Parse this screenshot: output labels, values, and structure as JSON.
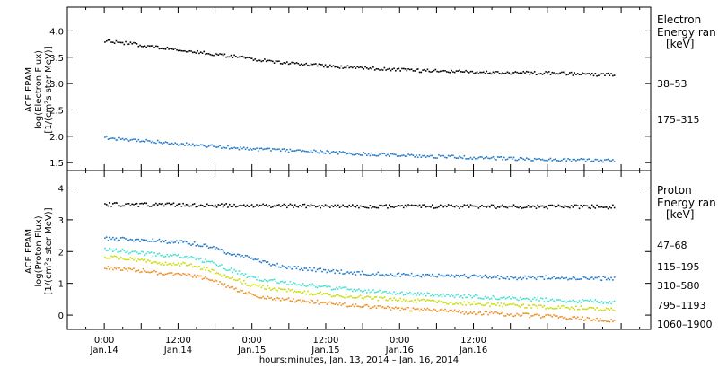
{
  "chart_data": [
    {
      "type": "scatter",
      "panel": "electron",
      "ylabel_lines": [
        "ACE EPAM",
        "log(Electron Flux)",
        "[1/(cm²s ster MeV)]"
      ],
      "ylim": [
        1.35,
        4.45
      ],
      "yticks": [
        1.5,
        2.0,
        2.5,
        3.0,
        3.5,
        4.0
      ],
      "ytick_labels": [
        "1.5",
        "2.0",
        "2.5",
        "3.0",
        "3.5",
        "4.0"
      ],
      "legend_title_lines": [
        "Electron",
        "Energy ran",
        "[keV]"
      ],
      "series": [
        {
          "name": "38–53",
          "color": "#000000",
          "x": [
            0,
            0.25,
            0.5,
            0.75,
            1.0,
            1.25,
            1.5,
            1.75,
            2.0,
            2.25,
            2.5,
            2.75,
            3.0,
            3.25,
            3.45
          ],
          "y": [
            3.83,
            3.74,
            3.65,
            3.57,
            3.48,
            3.4,
            3.35,
            3.31,
            3.27,
            3.25,
            3.23,
            3.22,
            3.21,
            3.19,
            3.18
          ]
        },
        {
          "name": "175–315",
          "color": "#1f78c8",
          "x": [
            0,
            0.25,
            0.5,
            0.75,
            1.0,
            1.25,
            1.5,
            1.75,
            2.0,
            2.25,
            2.5,
            2.75,
            3.0,
            3.25,
            3.45
          ],
          "y": [
            1.99,
            1.93,
            1.87,
            1.82,
            1.77,
            1.74,
            1.71,
            1.68,
            1.65,
            1.63,
            1.61,
            1.59,
            1.57,
            1.56,
            1.55
          ]
        }
      ]
    },
    {
      "type": "scatter",
      "panel": "proton",
      "ylabel_lines": [
        "ACE EPAM",
        "log(Proton Flux)",
        "[1/(cm²s ster MeV)]"
      ],
      "ylim": [
        -0.45,
        4.55
      ],
      "yticks": [
        0,
        1,
        2,
        3,
        4
      ],
      "ytick_labels": [
        "0",
        "1",
        "2",
        "3",
        "4"
      ],
      "legend_title_lines": [
        "Proton",
        "Energy ran",
        "[keV]"
      ],
      "series": [
        {
          "name": "47–68",
          "color": "#000000",
          "x": [
            0,
            0.3,
            0.6,
            0.9,
            1.2,
            1.5,
            1.8,
            2.1,
            2.4,
            2.7,
            3.0,
            3.3,
            3.45
          ],
          "y": [
            3.5,
            3.5,
            3.48,
            3.47,
            3.46,
            3.45,
            3.45,
            3.45,
            3.44,
            3.44,
            3.43,
            3.43,
            3.43
          ]
        },
        {
          "name": "115–195",
          "color": "#1f78c8",
          "x": [
            0,
            0.2,
            0.4,
            0.55,
            0.7,
            0.85,
            1.0,
            1.15,
            1.3,
            1.5,
            1.7,
            1.9,
            2.1,
            2.3,
            2.5,
            2.7,
            2.9,
            3.1,
            3.3,
            3.45
          ],
          "y": [
            2.42,
            2.4,
            2.35,
            2.3,
            2.2,
            1.95,
            1.8,
            1.6,
            1.5,
            1.42,
            1.35,
            1.3,
            1.28,
            1.25,
            1.25,
            1.2,
            1.2,
            1.2,
            1.18,
            1.17
          ]
        },
        {
          "name": "310–580",
          "color": "#40e0d0",
          "x": [
            0,
            0.2,
            0.4,
            0.55,
            0.7,
            0.85,
            1.0,
            1.2,
            1.4,
            1.6,
            1.8,
            2.0,
            2.2,
            2.4,
            2.6,
            2.8,
            3.0,
            3.2,
            3.45
          ],
          "y": [
            2.1,
            2.0,
            1.9,
            1.85,
            1.7,
            1.45,
            1.2,
            1.05,
            0.95,
            0.85,
            0.78,
            0.72,
            0.67,
            0.63,
            0.58,
            0.55,
            0.5,
            0.47,
            0.42
          ]
        },
        {
          "name": "795–1193",
          "color": "#c8dc00",
          "x": [
            0,
            0.2,
            0.4,
            0.55,
            0.7,
            0.85,
            1.0,
            1.2,
            1.4,
            1.6,
            1.8,
            2.0,
            2.2,
            2.4,
            2.6,
            2.8,
            3.0,
            3.2,
            3.45
          ],
          "y": [
            1.85,
            1.78,
            1.65,
            1.62,
            1.45,
            1.2,
            0.95,
            0.82,
            0.72,
            0.62,
            0.56,
            0.5,
            0.45,
            0.4,
            0.36,
            0.32,
            0.28,
            0.25,
            0.2
          ]
        },
        {
          "name": "1060–1900",
          "color": "#f08c1e",
          "x": [
            0,
            0.2,
            0.4,
            0.55,
            0.7,
            0.85,
            1.0,
            1.2,
            1.4,
            1.6,
            1.8,
            2.0,
            2.2,
            2.4,
            2.6,
            2.8,
            3.0,
            3.2,
            3.45
          ],
          "y": [
            1.52,
            1.45,
            1.33,
            1.3,
            1.15,
            0.9,
            0.65,
            0.52,
            0.45,
            0.35,
            0.28,
            0.22,
            0.18,
            0.12,
            0.08,
            0.03,
            -0.02,
            -0.08,
            -0.15
          ]
        }
      ]
    }
  ],
  "xaxis": {
    "title": "hours:minutes, Jan. 13, 2014 – Jan. 16, 2014",
    "range_days": [
      -0.25,
      3.7
    ],
    "ticks": [
      {
        "x": 0.0,
        "time": "0:00",
        "date": "Jan.14"
      },
      {
        "x": 0.5,
        "time": "12:00",
        "date": "Jan.14"
      },
      {
        "x": 1.0,
        "time": "0:00",
        "date": "Jan.15"
      },
      {
        "x": 1.5,
        "time": "12:00",
        "date": "Jan.15"
      },
      {
        "x": 2.0,
        "time": "0:00",
        "date": "Jan.16"
      },
      {
        "x": 2.5,
        "time": "12:00",
        "date": "Jan.16"
      }
    ]
  }
}
